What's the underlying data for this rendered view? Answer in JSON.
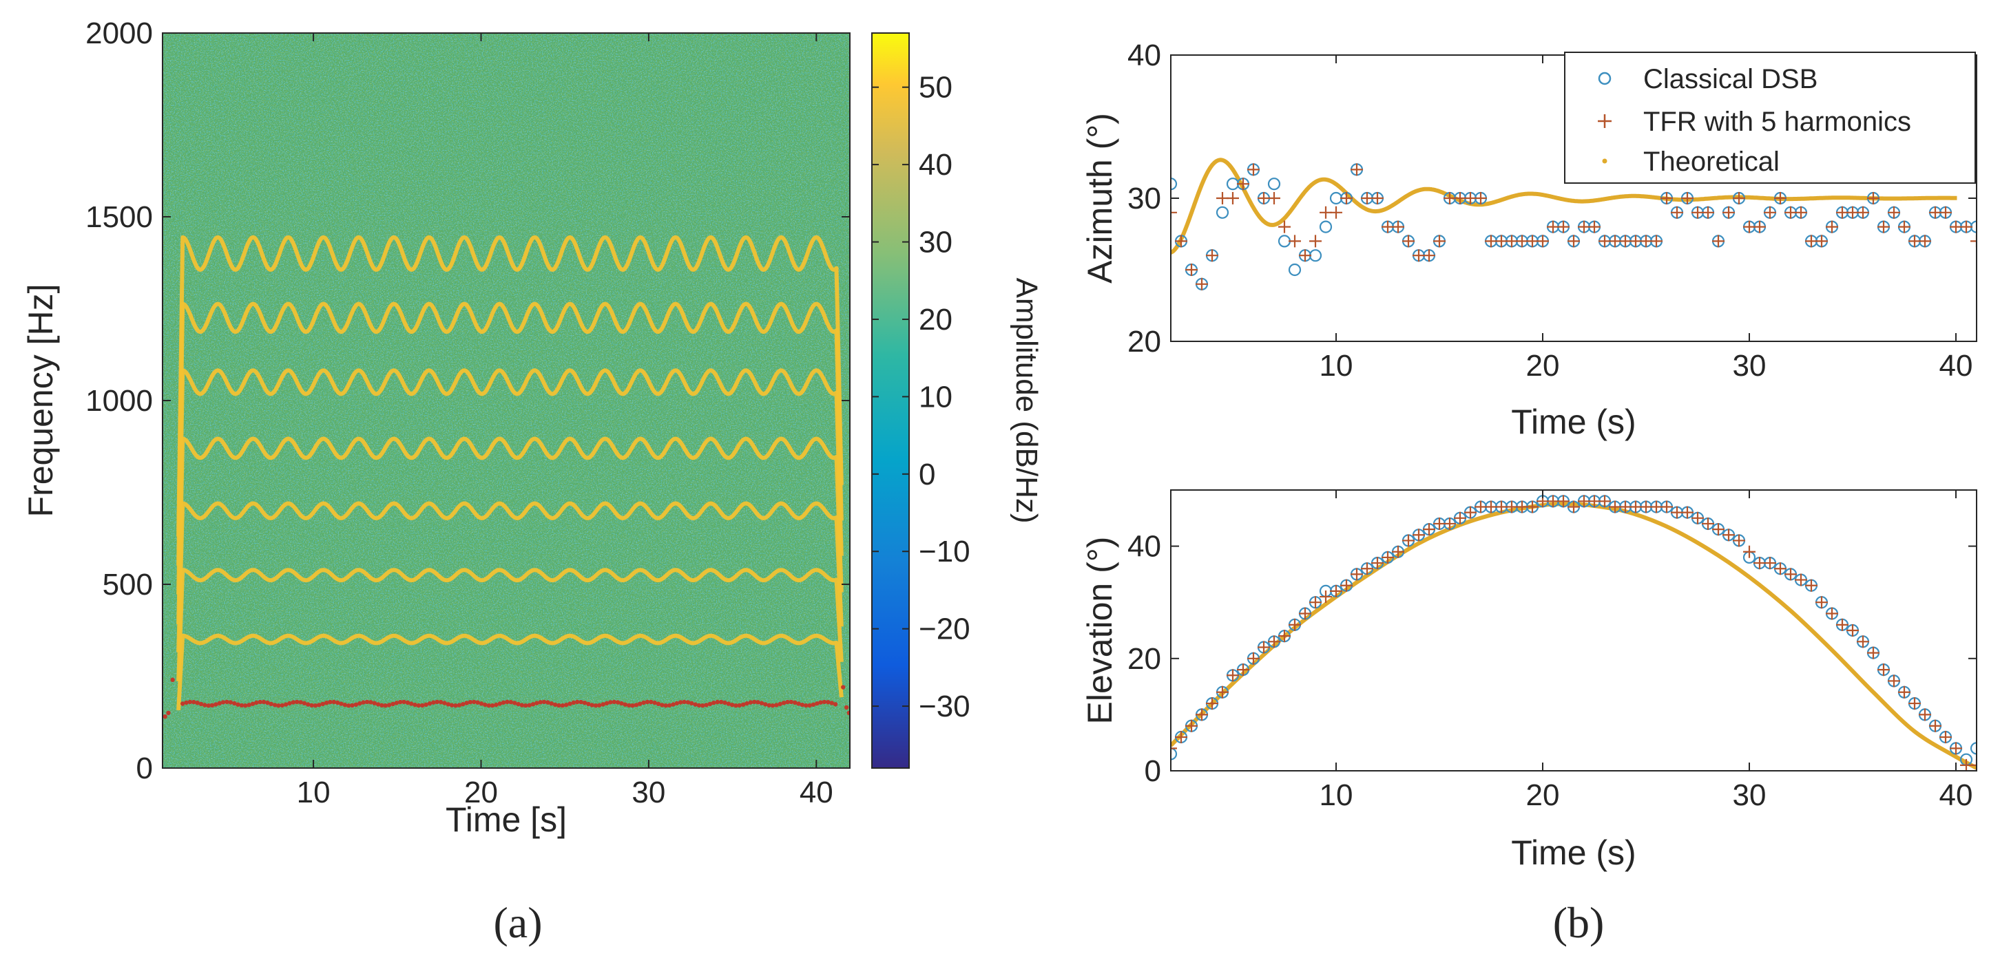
{
  "figure": {
    "panel_a_caption": "(a)",
    "panel_b_caption": "(b)"
  },
  "colors": {
    "background_field": "#5aae6a",
    "harmonic_line": "#f2c233",
    "fundamental_track": "#c0392b",
    "dsb_marker": "#3d8fbf",
    "tfr_marker": "#b5542a",
    "theoretical_line": "#e0aa2b",
    "axis": "#262626"
  },
  "chart_data": [
    {
      "id": "spectrogram",
      "type": "heatmap",
      "title": "",
      "xlabel": "Time [s]",
      "ylabel": "Frequency [Hz]",
      "xlim": [
        1,
        42
      ],
      "ylim": [
        0,
        2000
      ],
      "xticks": [
        10,
        20,
        30,
        40
      ],
      "yticks": [
        0,
        500,
        1000,
        1500,
        2000
      ],
      "harmonic_window": [
        2.2,
        41.2
      ],
      "harmonics": [
        {
          "center_hz": 350,
          "amplitude_hz": 10
        },
        {
          "center_hz": 525,
          "amplitude_hz": 14
        },
        {
          "center_hz": 700,
          "amplitude_hz": 20
        },
        {
          "center_hz": 870,
          "amplitude_hz": 26
        },
        {
          "center_hz": 1050,
          "amplitude_hz": 32
        },
        {
          "center_hz": 1225,
          "amplitude_hz": 38
        },
        {
          "center_hz": 1400,
          "amplitude_hz": 44
        }
      ],
      "oscillation_period_s": 2.1,
      "fundamental_track": {
        "center_hz": 175,
        "amplitude_hz": 5
      },
      "colorbar": {
        "label": "Amplitude (dB/Hz)",
        "range": [
          -38,
          57
        ],
        "ticks": [
          -30,
          -20,
          -10,
          0,
          10,
          20,
          30,
          40,
          50
        ],
        "tick_labels": [
          "−30",
          "−20",
          "−10",
          "0",
          "10",
          "20",
          "30",
          "40",
          "50"
        ]
      }
    },
    {
      "id": "azimuth",
      "type": "scatter",
      "xlabel": "Time (s)",
      "ylabel": "Azimuth (°)",
      "xlim": [
        2,
        41
      ],
      "ylim": [
        20,
        40
      ],
      "xticks": [
        10,
        20,
        30,
        40
      ],
      "yticks": [
        20,
        30,
        40
      ],
      "legend": {
        "placement": "top-right",
        "entries": [
          "Classical DSB",
          "TFR with 5 harmonics",
          "Theoretical"
        ]
      },
      "theoretical": {
        "mean": 30,
        "decay_amplitude": 3.8,
        "decay_time_s": 7,
        "period_s": 5,
        "phase_s": 4.5
      },
      "series": [
        {
          "name": "Classical DSB",
          "x": [
            2,
            2.5,
            3,
            3.5,
            4,
            4.5,
            5,
            5.5,
            6,
            6.5,
            7,
            7.5,
            8,
            8.5,
            9,
            9.5,
            10,
            10.5,
            11,
            11.5,
            12,
            12.5,
            13,
            13.5,
            14,
            14.5,
            15,
            15.5,
            16,
            16.5,
            17,
            17.5,
            18,
            18.5,
            19,
            19.5,
            20,
            20.5,
            21,
            21.5,
            22,
            22.5,
            23,
            23.5,
            24,
            24.5,
            25,
            25.5,
            26,
            26.5,
            27,
            27.5,
            28,
            28.5,
            29,
            29.5,
            30,
            30.5,
            31,
            31.5,
            32,
            32.5,
            33,
            33.5,
            34,
            34.5,
            35,
            35.5,
            36,
            36.5,
            37,
            37.5,
            38,
            38.5,
            39,
            39.5,
            40,
            40.5,
            41
          ],
          "y": [
            31,
            27,
            25,
            24,
            26,
            29,
            31,
            31,
            32,
            30,
            31,
            27,
            25,
            26,
            26,
            28,
            30,
            30,
            32,
            30,
            30,
            28,
            28,
            27,
            26,
            26,
            27,
            30,
            30,
            30,
            30,
            27,
            27,
            27,
            27,
            27,
            27,
            28,
            28,
            27,
            28,
            28,
            27,
            27,
            27,
            27,
            27,
            27,
            30,
            29,
            30,
            29,
            29,
            27,
            29,
            30,
            28,
            28,
            29,
            30,
            29,
            29,
            27,
            27,
            28,
            29,
            29,
            29,
            30,
            28,
            29,
            28,
            27,
            27,
            29,
            29,
            28,
            28,
            28
          ]
        },
        {
          "name": "TFR with 5 harmonics",
          "x": [
            2,
            2.5,
            3,
            3.5,
            4,
            4.5,
            5,
            5.5,
            6,
            6.5,
            7,
            7.5,
            8,
            8.5,
            9,
            9.5,
            10,
            10.5,
            11,
            11.5,
            12,
            12.5,
            13,
            13.5,
            14,
            14.5,
            15,
            15.5,
            16,
            16.5,
            17,
            17.5,
            18,
            18.5,
            19,
            19.5,
            20,
            20.5,
            21,
            21.5,
            22,
            22.5,
            23,
            23.5,
            24,
            24.5,
            25,
            25.5,
            26,
            26.5,
            27,
            27.5,
            28,
            28.5,
            29,
            29.5,
            30,
            30.5,
            31,
            31.5,
            32,
            32.5,
            33,
            33.5,
            34,
            34.5,
            35,
            35.5,
            36,
            36.5,
            37,
            37.5,
            38,
            38.5,
            39,
            39.5,
            40,
            40.5,
            41
          ],
          "y": [
            29,
            27,
            25,
            24,
            26,
            30,
            30,
            31,
            32,
            30,
            30,
            28,
            27,
            26,
            27,
            29,
            29,
            30,
            32,
            30,
            30,
            28,
            28,
            27,
            26,
            26,
            27,
            30,
            30,
            30,
            30,
            27,
            27,
            27,
            27,
            27,
            27,
            28,
            28,
            27,
            28,
            28,
            27,
            27,
            27,
            27,
            27,
            27,
            30,
            29,
            30,
            29,
            29,
            27,
            29,
            30,
            28,
            28,
            29,
            30,
            29,
            29,
            27,
            27,
            28,
            29,
            29,
            29,
            30,
            28,
            29,
            28,
            27,
            27,
            29,
            29,
            28,
            28,
            27
          ]
        }
      ]
    },
    {
      "id": "elevation",
      "type": "scatter",
      "xlabel": "Time (s)",
      "ylabel": "Elevation (°)",
      "xlim": [
        2,
        41
      ],
      "ylim": [
        0,
        50
      ],
      "xticks": [
        10,
        20,
        30,
        40
      ],
      "yticks": [
        0,
        20,
        40
      ],
      "theoretical": {
        "x": [
          2,
          4,
          6,
          8,
          10,
          12,
          14,
          16,
          18,
          20,
          21,
          22,
          24,
          26,
          28,
          30,
          32,
          34,
          36,
          38,
          40,
          41
        ],
        "y": [
          4.5,
          12,
          19,
          25.5,
          31,
          36,
          40.5,
          43.8,
          46,
          47.3,
          47.5,
          47.4,
          46.2,
          43.5,
          39.5,
          34.5,
          28.5,
          21.5,
          14,
          7,
          2.5,
          0.5
        ]
      },
      "series": [
        {
          "name": "Classical DSB",
          "x": [
            2,
            2.5,
            3,
            3.5,
            4,
            4.5,
            5,
            5.5,
            6,
            6.5,
            7,
            7.5,
            8,
            8.5,
            9,
            9.5,
            10,
            10.5,
            11,
            11.5,
            12,
            12.5,
            13,
            13.5,
            14,
            14.5,
            15,
            15.5,
            16,
            16.5,
            17,
            17.5,
            18,
            18.5,
            19,
            19.5,
            20,
            20.5,
            21,
            21.5,
            22,
            22.5,
            23,
            23.5,
            24,
            24.5,
            25,
            25.5,
            26,
            26.5,
            27,
            27.5,
            28,
            28.5,
            29,
            29.5,
            30,
            30.5,
            31,
            31.5,
            32,
            32.5,
            33,
            33.5,
            34,
            34.5,
            35,
            35.5,
            36,
            36.5,
            37,
            37.5,
            38,
            38.5,
            39,
            39.5,
            40,
            40.5,
            41
          ],
          "y": [
            3,
            6,
            8,
            10,
            12,
            14,
            17,
            18,
            20,
            22,
            23,
            24,
            26,
            28,
            30,
            32,
            32,
            33,
            35,
            36,
            37,
            38,
            39,
            41,
            42,
            43,
            44,
            44,
            45,
            46,
            47,
            47,
            47,
            47,
            47,
            47,
            48,
            48,
            48,
            47,
            48,
            48,
            48,
            47,
            47,
            47,
            47,
            47,
            47,
            46,
            46,
            45,
            44,
            43,
            42,
            41,
            38,
            37,
            37,
            36,
            35,
            34,
            33,
            30,
            28,
            26,
            25,
            23,
            21,
            18,
            16,
            14,
            12,
            10,
            8,
            6,
            4,
            2,
            4
          ]
        },
        {
          "name": "TFR with 5 harmonics",
          "x": [
            2,
            2.5,
            3,
            3.5,
            4,
            4.5,
            5,
            5.5,
            6,
            6.5,
            7,
            7.5,
            8,
            8.5,
            9,
            9.5,
            10,
            10.5,
            11,
            11.5,
            12,
            12.5,
            13,
            13.5,
            14,
            14.5,
            15,
            15.5,
            16,
            16.5,
            17,
            17.5,
            18,
            18.5,
            19,
            19.5,
            20,
            20.5,
            21,
            21.5,
            22,
            22.5,
            23,
            23.5,
            24,
            24.5,
            25,
            25.5,
            26,
            26.5,
            27,
            27.5,
            28,
            28.5,
            29,
            29.5,
            30,
            30.5,
            31,
            31.5,
            32,
            32.5,
            33,
            33.5,
            34,
            34.5,
            35,
            35.5,
            36,
            36.5,
            37,
            37.5,
            38,
            38.5,
            39,
            39.5,
            40,
            40.5,
            41
          ],
          "y": [
            4,
            6,
            8,
            10,
            12,
            14,
            17,
            18,
            20,
            22,
            23,
            24,
            26,
            28,
            30,
            31,
            32,
            33,
            35,
            36,
            37,
            38,
            39,
            41,
            42,
            43,
            44,
            44,
            45,
            46,
            47,
            47,
            47,
            47,
            47,
            47,
            48,
            48,
            48,
            47,
            48,
            48,
            48,
            47,
            47,
            47,
            47,
            47,
            47,
            46,
            46,
            45,
            44,
            43,
            42,
            41,
            39,
            37,
            37,
            36,
            35,
            34,
            33,
            30,
            28,
            26,
            25,
            23,
            21,
            18,
            16,
            14,
            12,
            10,
            8,
            6,
            4,
            1,
            1
          ]
        }
      ]
    }
  ]
}
